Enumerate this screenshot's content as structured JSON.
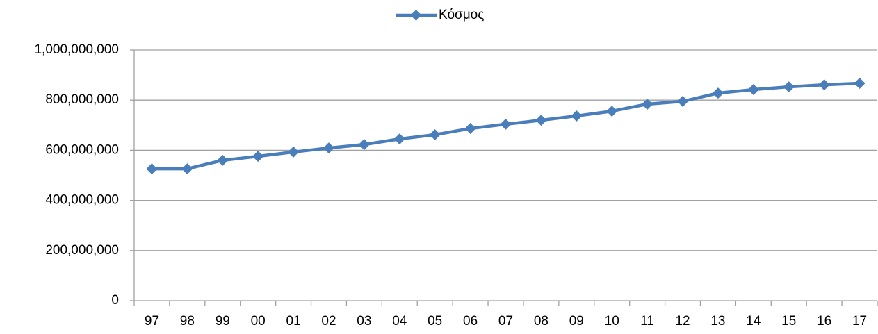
{
  "chart_data": {
    "type": "line",
    "categories": [
      "97",
      "98",
      "99",
      "00",
      "01",
      "02",
      "03",
      "04",
      "05",
      "06",
      "07",
      "08",
      "09",
      "10",
      "11",
      "12",
      "13",
      "14",
      "15",
      "16",
      "17"
    ],
    "series": [
      {
        "name": "Κόσμος",
        "color": "#4a7ebb",
        "values": [
          526000000,
          526000000,
          560000000,
          576000000,
          593000000,
          609000000,
          623000000,
          645000000,
          662000000,
          687000000,
          704000000,
          720000000,
          737000000,
          756000000,
          784000000,
          795000000,
          828000000,
          842000000,
          853000000,
          861000000,
          867000000
        ]
      }
    ],
    "ylim": [
      0,
      1000000000
    ],
    "yticks": [
      0,
      {
        "value": 200000000,
        "label": "200,000,000"
      },
      {
        "value": 400000000,
        "label": "400,000,000"
      },
      {
        "value": 600000000,
        "label": "600,000,000"
      },
      {
        "value": 800000000,
        "label": "800,000,000"
      },
      {
        "value": 1000000000,
        "label": "1,000,000,000"
      }
    ],
    "grid": true,
    "legend": "top"
  }
}
